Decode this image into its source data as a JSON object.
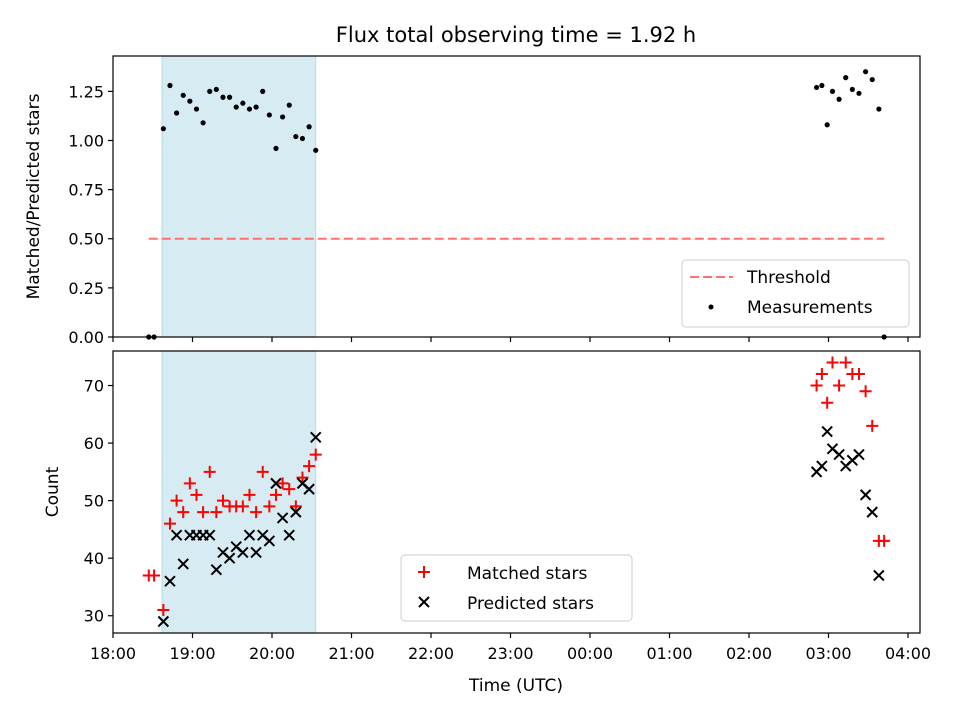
{
  "chart_data": {
    "type": "scatter",
    "title": "Flux total observing time = 1.92 h",
    "xlabel": "Time (UTC)",
    "x_ticks": [
      "18:00",
      "19:00",
      "20:00",
      "21:00",
      "22:00",
      "23:00",
      "00:00",
      "01:00",
      "02:00",
      "03:00",
      "04:00"
    ],
    "shaded_interval": [
      "18:37",
      "20:33"
    ],
    "panels": [
      {
        "ylabel": "Matched/Predicted stars",
        "ylim": [
          0,
          1.43
        ],
        "y_ticks": [
          "0.00",
          "0.25",
          "0.50",
          "0.75",
          "1.00",
          "1.25"
        ],
        "legend_position": "lower-right",
        "threshold": {
          "name": "Threshold",
          "y": 0.5,
          "x_range": [
            "18:27",
            "03:42"
          ],
          "color": "#ff7070"
        },
        "series": [
          {
            "name": "Measurements",
            "marker": "dot",
            "color": "#000000",
            "points": [
              [
                "18:27",
                0.0
              ],
              [
                "18:31",
                0.0
              ],
              [
                "18:38",
                1.06
              ],
              [
                "18:43",
                1.28
              ],
              [
                "18:48",
                1.14
              ],
              [
                "18:53",
                1.23
              ],
              [
                "18:58",
                1.2
              ],
              [
                "19:03",
                1.16
              ],
              [
                "19:08",
                1.09
              ],
              [
                "19:13",
                1.25
              ],
              [
                "19:18",
                1.26
              ],
              [
                "19:23",
                1.22
              ],
              [
                "19:28",
                1.22
              ],
              [
                "19:33",
                1.17
              ],
              [
                "19:38",
                1.19
              ],
              [
                "19:43",
                1.16
              ],
              [
                "19:48",
                1.17
              ],
              [
                "19:53",
                1.25
              ],
              [
                "19:58",
                1.13
              ],
              [
                "20:03",
                0.96
              ],
              [
                "20:08",
                1.12
              ],
              [
                "20:13",
                1.18
              ],
              [
                "20:18",
                1.02
              ],
              [
                "20:23",
                1.01
              ],
              [
                "20:28",
                1.07
              ],
              [
                "20:33",
                0.95
              ],
              [
                "02:51",
                1.27
              ],
              [
                "02:55",
                1.28
              ],
              [
                "02:59",
                1.08
              ],
              [
                "03:03",
                1.25
              ],
              [
                "03:08",
                1.21
              ],
              [
                "03:13",
                1.32
              ],
              [
                "03:18",
                1.26
              ],
              [
                "03:23",
                1.24
              ],
              [
                "03:28",
                1.35
              ],
              [
                "03:33",
                1.31
              ],
              [
                "03:38",
                1.16
              ],
              [
                "03:42",
                0.0
              ]
            ]
          }
        ]
      },
      {
        "ylabel": "Count",
        "ylim": [
          27,
          76
        ],
        "y_ticks": [
          "30",
          "40",
          "50",
          "60",
          "70"
        ],
        "legend_position": "lower-center",
        "series": [
          {
            "name": "Matched stars",
            "marker": "plus",
            "color": "#ff0000",
            "points": [
              [
                "18:27",
                37
              ],
              [
                "18:31",
                37
              ],
              [
                "18:38",
                31
              ],
              [
                "18:43",
                46
              ],
              [
                "18:48",
                50
              ],
              [
                "18:53",
                48
              ],
              [
                "18:58",
                53
              ],
              [
                "19:03",
                51
              ],
              [
                "19:08",
                48
              ],
              [
                "19:13",
                55
              ],
              [
                "19:18",
                48
              ],
              [
                "19:23",
                50
              ],
              [
                "19:28",
                49
              ],
              [
                "19:33",
                49
              ],
              [
                "19:38",
                49
              ],
              [
                "19:43",
                51
              ],
              [
                "19:48",
                48
              ],
              [
                "19:53",
                55
              ],
              [
                "19:58",
                49
              ],
              [
                "20:03",
                51
              ],
              [
                "20:08",
                53
              ],
              [
                "20:13",
                52
              ],
              [
                "20:18",
                49
              ],
              [
                "20:23",
                54
              ],
              [
                "20:28",
                56
              ],
              [
                "20:33",
                58
              ],
              [
                "02:51",
                70
              ],
              [
                "02:55",
                72
              ],
              [
                "02:59",
                67
              ],
              [
                "03:03",
                74
              ],
              [
                "03:08",
                70
              ],
              [
                "03:13",
                74
              ],
              [
                "03:18",
                72
              ],
              [
                "03:23",
                72
              ],
              [
                "03:28",
                69
              ],
              [
                "03:33",
                63
              ],
              [
                "03:38",
                43
              ],
              [
                "03:42",
                43
              ]
            ]
          },
          {
            "name": "Predicted stars",
            "marker": "x",
            "color": "#000000",
            "points": [
              [
                "18:38",
                29
              ],
              [
                "18:43",
                36
              ],
              [
                "18:48",
                44
              ],
              [
                "18:53",
                39
              ],
              [
                "18:58",
                44
              ],
              [
                "19:03",
                44
              ],
              [
                "19:08",
                44
              ],
              [
                "19:13",
                44
              ],
              [
                "19:18",
                38
              ],
              [
                "19:23",
                41
              ],
              [
                "19:28",
                40
              ],
              [
                "19:33",
                42
              ],
              [
                "19:38",
                41
              ],
              [
                "19:43",
                44
              ],
              [
                "19:48",
                41
              ],
              [
                "19:53",
                44
              ],
              [
                "19:58",
                43
              ],
              [
                "20:03",
                53
              ],
              [
                "20:08",
                47
              ],
              [
                "20:13",
                44
              ],
              [
                "20:18",
                48
              ],
              [
                "20:23",
                53
              ],
              [
                "20:28",
                52
              ],
              [
                "20:33",
                61
              ],
              [
                "02:51",
                55
              ],
              [
                "02:55",
                56
              ],
              [
                "02:59",
                62
              ],
              [
                "03:03",
                59
              ],
              [
                "03:08",
                58
              ],
              [
                "03:13",
                56
              ],
              [
                "03:18",
                57
              ],
              [
                "03:23",
                58
              ],
              [
                "03:28",
                51
              ],
              [
                "03:33",
                48
              ],
              [
                "03:38",
                37
              ]
            ]
          }
        ]
      }
    ]
  }
}
